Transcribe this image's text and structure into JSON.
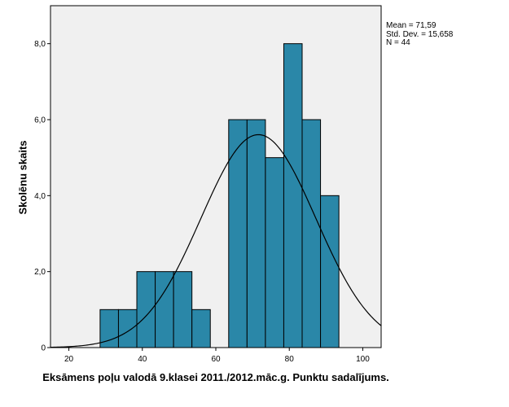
{
  "chart_data": {
    "type": "bar",
    "subtype": "histogram",
    "title": "",
    "xlabel": "Eksāmens poļu valodā 9.klasei 2011./2012.māc.g. Punktu sadalījums.",
    "ylabel": "Skolēnu skaits",
    "xlim": [
      15,
      105
    ],
    "ylim": [
      0,
      9
    ],
    "x_ticks": [
      "20",
      "40",
      "60",
      "80",
      "100"
    ],
    "x_tick_values": [
      20,
      40,
      60,
      80,
      100
    ],
    "y_ticks": [
      "0",
      "2,0",
      "4,0",
      "6,0",
      "8,0"
    ],
    "y_tick_values": [
      0,
      2,
      4,
      6,
      8
    ],
    "bin_width": 5,
    "bins": [
      {
        "start": 28.5,
        "count": 1
      },
      {
        "start": 33.5,
        "count": 1
      },
      {
        "start": 38.5,
        "count": 2
      },
      {
        "start": 43.5,
        "count": 2
      },
      {
        "start": 48.5,
        "count": 2
      },
      {
        "start": 53.5,
        "count": 1
      },
      {
        "start": 63.5,
        "count": 6
      },
      {
        "start": 68.5,
        "count": 6
      },
      {
        "start": 73.5,
        "count": 5
      },
      {
        "start": 78.5,
        "count": 8
      },
      {
        "start": 83.5,
        "count": 6
      },
      {
        "start": 88.5,
        "count": 4
      }
    ],
    "normal_curve": {
      "mean": 71.59,
      "std": 15.658,
      "n": 44
    },
    "stats_lines": [
      "Mean = 71,59",
      "Std. Dev. = 15,658",
      "N = 44"
    ],
    "grid": false,
    "legend": "top-right"
  },
  "colors": {
    "bar_fill": "#2a87a8",
    "bar_stroke": "#000000",
    "plot_background": "#f0f0f0",
    "curve": "#000000"
  }
}
